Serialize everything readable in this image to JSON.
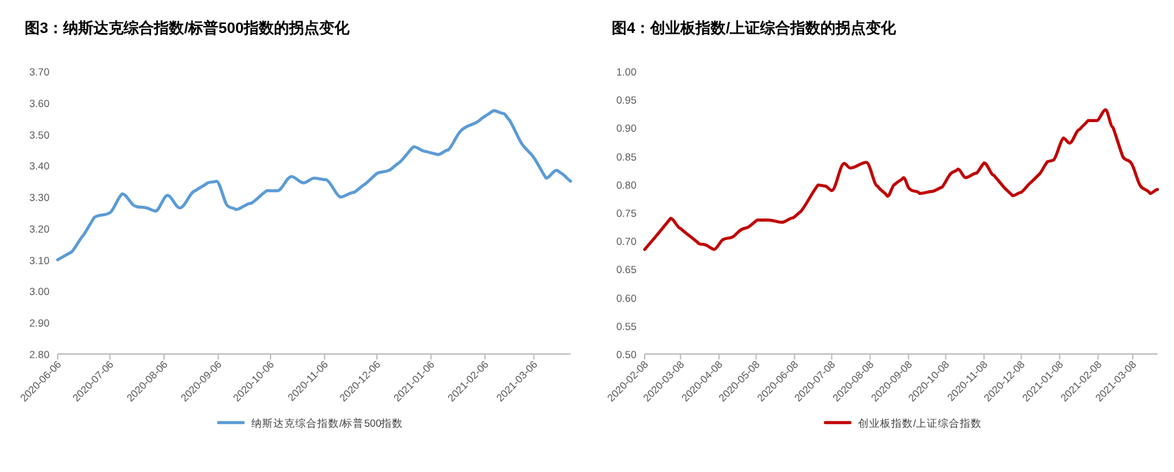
{
  "chart_data": [
    {
      "type": "line",
      "title": "图3：纳斯达克综合指数/标普500指数的拐点变化",
      "legend": "bottom",
      "grid": false,
      "marker": "none",
      "line_style": "solid",
      "xlim": [
        "2020-06-06",
        "2021-03-27"
      ],
      "xticks": [
        "2020-06-06",
        "2020-07-06",
        "2020-08-06",
        "2020-09-06",
        "2020-10-06",
        "2020-11-06",
        "2020-12-06",
        "2021-01-06",
        "2021-02-06",
        "2021-03-06"
      ],
      "ylim": [
        2.8,
        3.7
      ],
      "yticks": [
        {
          "value": 2.8,
          "label": "2.80"
        },
        {
          "value": 2.9,
          "label": "2.90"
        },
        {
          "value": 3.0,
          "label": "3.00"
        },
        {
          "value": 3.1,
          "label": "3.10"
        },
        {
          "value": 3.2,
          "label": "3.20"
        },
        {
          "value": 3.3,
          "label": "3.30"
        },
        {
          "value": 3.4,
          "label": "3.40"
        },
        {
          "value": 3.5,
          "label": "3.50"
        },
        {
          "value": 3.6,
          "label": "3.60"
        },
        {
          "value": 3.7,
          "label": "3.70"
        }
      ],
      "series": [
        {
          "name": "纳斯达克综合指数/标普500指数",
          "color": "#5b9bd5",
          "x": [
            "2020-06-06",
            "2020-06-14",
            "2020-06-21",
            "2020-06-27",
            "2020-07-06",
            "2020-07-13",
            "2020-07-21",
            "2020-07-27",
            "2020-08-01",
            "2020-08-08",
            "2020-08-15",
            "2020-08-24",
            "2020-08-31",
            "2020-09-05",
            "2020-09-12",
            "2020-09-16",
            "2020-09-25",
            "2020-10-04",
            "2020-10-10",
            "2020-10-18",
            "2020-10-25",
            "2020-10-31",
            "2020-11-07",
            "2020-11-15",
            "2020-11-23",
            "2020-11-29",
            "2020-12-06",
            "2020-12-13",
            "2020-12-19",
            "2020-12-27",
            "2021-01-03",
            "2021-01-10",
            "2021-01-16",
            "2021-01-23",
            "2021-02-04",
            "2021-02-11",
            "2021-02-17",
            "2021-02-20",
            "2021-02-27",
            "2021-03-06",
            "2021-03-13",
            "2021-03-19",
            "2021-03-22",
            "2021-03-27"
          ],
          "values": [
            3.1,
            3.125,
            3.18,
            3.235,
            3.25,
            3.31,
            3.27,
            3.265,
            3.255,
            3.305,
            3.265,
            3.32,
            3.345,
            3.35,
            3.27,
            3.26,
            3.28,
            3.32,
            3.32,
            3.365,
            3.345,
            3.36,
            3.355,
            3.3,
            3.315,
            3.34,
            3.375,
            3.385,
            3.41,
            3.46,
            3.445,
            3.435,
            3.45,
            3.51,
            3.55,
            3.575,
            3.565,
            3.545,
            3.47,
            3.425,
            3.36,
            3.385,
            3.375,
            3.35
          ]
        }
      ]
    },
    {
      "type": "line",
      "title": "图4：创业板指数/上证综合指数的拐点变化",
      "legend": "bottom",
      "grid": false,
      "marker": "none",
      "line_style": "solid",
      "xlim": [
        "2020-02-08",
        "2021-03-28"
      ],
      "xticks": [
        "2020-02-08",
        "2020-03-08",
        "2020-04-08",
        "2020-05-08",
        "2020-06-08",
        "2020-07-08",
        "2020-08-08",
        "2020-09-08",
        "2020-10-08",
        "2020-11-08",
        "2020-12-08",
        "2021-01-08",
        "2021-02-08",
        "2021-03-08"
      ],
      "ylim": [
        0.5,
        1.0
      ],
      "yticks": [
        {
          "value": 0.5,
          "label": "0.50"
        },
        {
          "value": 0.55,
          "label": "0.55"
        },
        {
          "value": 0.6,
          "label": "0.60"
        },
        {
          "value": 0.65,
          "label": "0.65"
        },
        {
          "value": 0.7,
          "label": "0.70"
        },
        {
          "value": 0.75,
          "label": "0.75"
        },
        {
          "value": 0.8,
          "label": "0.80"
        },
        {
          "value": 0.85,
          "label": "0.85"
        },
        {
          "value": 0.9,
          "label": "0.90"
        },
        {
          "value": 0.95,
          "label": "0.95"
        },
        {
          "value": 1.0,
          "label": "1.00"
        }
      ],
      "series": [
        {
          "name": "创业板指数/上证综合指数",
          "color": "#c00000",
          "x": [
            "2020-02-08",
            "2020-02-17",
            "2020-02-29",
            "2020-03-08",
            "2020-03-23",
            "2020-03-28",
            "2020-04-04",
            "2020-04-12",
            "2020-04-19",
            "2020-04-26",
            "2020-05-02",
            "2020-05-09",
            "2020-05-18",
            "2020-05-29",
            "2020-06-07",
            "2020-06-13",
            "2020-06-27",
            "2020-07-03",
            "2020-07-08",
            "2020-07-18",
            "2020-07-23",
            "2020-08-05",
            "2020-08-14",
            "2020-08-22",
            "2020-08-28",
            "2020-09-04",
            "2020-09-09",
            "2020-09-17",
            "2020-09-28",
            "2020-10-05",
            "2020-10-12",
            "2020-10-18",
            "2020-10-24",
            "2020-11-02",
            "2020-11-08",
            "2020-11-16",
            "2020-11-24",
            "2020-12-01",
            "2020-12-08",
            "2020-12-16",
            "2020-12-23",
            "2020-12-29",
            "2021-01-03",
            "2021-01-11",
            "2021-01-16",
            "2021-01-24",
            "2021-01-31",
            "2021-02-07",
            "2021-02-14",
            "2021-02-20",
            "2021-02-28",
            "2021-03-07",
            "2021-03-14",
            "2021-03-22",
            "2021-03-28"
          ],
          "values": [
            0.685,
            0.708,
            0.74,
            0.722,
            0.695,
            0.693,
            0.685,
            0.703,
            0.707,
            0.72,
            0.725,
            0.737,
            0.737,
            0.733,
            0.741,
            0.752,
            0.799,
            0.797,
            0.789,
            0.837,
            0.829,
            0.839,
            0.797,
            0.779,
            0.8,
            0.812,
            0.792,
            0.784,
            0.788,
            0.795,
            0.819,
            0.827,
            0.812,
            0.82,
            0.838,
            0.816,
            0.795,
            0.78,
            0.786,
            0.804,
            0.819,
            0.84,
            0.843,
            0.882,
            0.873,
            0.897,
            0.913,
            0.913,
            0.932,
            0.901,
            0.849,
            0.837,
            0.798,
            0.784,
            0.791
          ]
        }
      ]
    }
  ]
}
